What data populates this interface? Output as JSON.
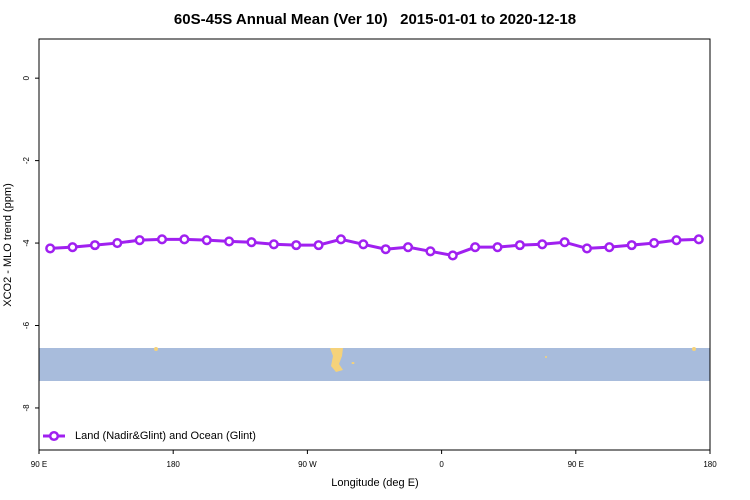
{
  "chart_data": {
    "type": "line",
    "title": "60S-45S Annual Mean (Ver 10)   2015-01-01 to 2020-12-18",
    "x_label": "Longitude (deg E)",
    "y_label": "XCO2 - MLO trend (ppm)",
    "xlim": [
      90,
      540
    ],
    "ylim": [
      -9.02,
      0.95
    ],
    "xticks": [
      {
        "value": 90,
        "label": "90 E"
      },
      {
        "value": 180,
        "label": "180"
      },
      {
        "value": 270,
        "label": "90 W"
      },
      {
        "value": 360,
        "label": "0"
      },
      {
        "value": 450,
        "label": "90 E"
      },
      {
        "value": 540,
        "label": "180"
      }
    ],
    "yticks": [
      0,
      -2,
      -4,
      -6,
      -8
    ],
    "x": [
      97.5,
      112.5,
      127.5,
      142.5,
      157.5,
      172.5,
      187.5,
      202.5,
      217.5,
      232.5,
      247.5,
      262.5,
      277.5,
      292.5,
      307.5,
      322.5,
      337.5,
      352.5,
      367.5,
      382.5,
      397.5,
      412.5,
      427.5,
      442.5,
      457.5,
      472.5,
      487.5,
      502.5,
      517.5,
      532.5
    ],
    "series": [
      {
        "name": "Land (Nadir&Glint) and Ocean (Glint)",
        "color": "#a020f0",
        "values": [
          -4.13,
          -4.1,
          -4.05,
          -4.0,
          -3.93,
          -3.91,
          -3.91,
          -3.93,
          -3.96,
          -3.98,
          -4.03,
          -4.05,
          -4.05,
          -3.91,
          -4.03,
          -4.15,
          -4.1,
          -4.2,
          -4.3,
          -4.1,
          -4.1,
          -4.05,
          -4.03,
          -3.98,
          -4.13,
          -4.1,
          -4.05,
          -4.0,
          -3.93,
          -3.91
        ]
      }
    ],
    "legend_position": "bottom-left"
  }
}
